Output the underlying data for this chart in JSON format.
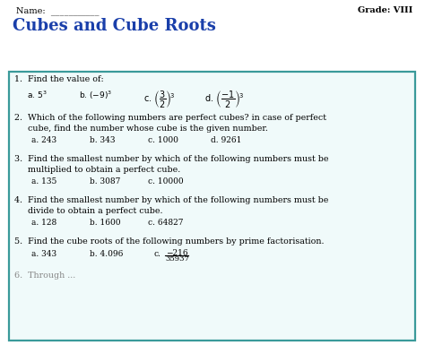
{
  "bg_color": "#ffffff",
  "border_color": "#3a9a9a",
  "title": "Cubes and Cube Roots",
  "title_color": "#1a3faa",
  "header_name": "Name:  ___________",
  "header_grade": "Grade: VIII",
  "box_bg": "#f0fafa"
}
